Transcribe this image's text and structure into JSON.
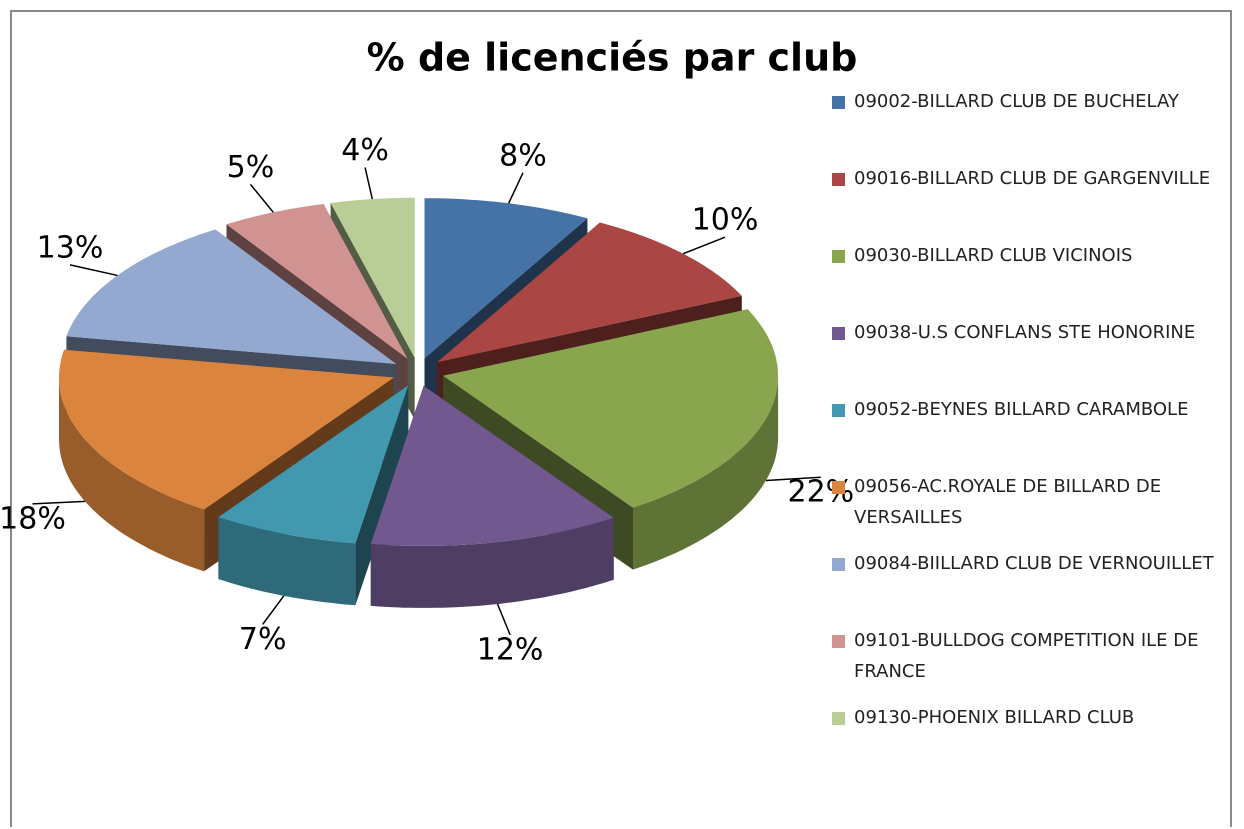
{
  "chart_data": {
    "type": "pie3d",
    "title": "% de licenciés par club",
    "categories": [
      "09002-BILLARD CLUB DE BUCHELAY",
      "09016-BILLARD CLUB DE GARGENVILLE",
      "09030-BILLARD CLUB VICINOIS",
      "09038-U.S CONFLANS STE HONORINE",
      "09052-BEYNES BILLARD CARAMBOLE",
      "09056-AC.ROYALE DE BILLARD DE VERSAILLES",
      "09084-BIILLARD CLUB DE VERNOUILLET",
      "09101-BULLDOG COMPETITION ILE DE FRANCE",
      "09130-PHOENIX BILLARD CLUB"
    ],
    "values": [
      8,
      10,
      22,
      12,
      7,
      18,
      13,
      5,
      4
    ],
    "value_labels": [
      "8%",
      "10%",
      "22%",
      "12%",
      "7%",
      "18%",
      "13%",
      "5%",
      "4%"
    ],
    "colors": [
      "#4572a7",
      "#aa4643",
      "#89a54e",
      "#71588f",
      "#4198af",
      "#db843d",
      "#93a9cf",
      "#d19392",
      "#b9cd96"
    ],
    "legend": "right"
  }
}
